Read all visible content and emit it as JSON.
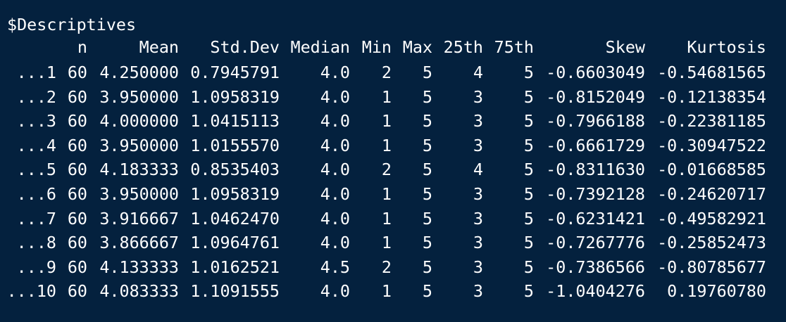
{
  "title": "$Descriptives",
  "columns": [
    "",
    "n",
    "Mean",
    "Std.Dev",
    "Median",
    "Min",
    "Max",
    "25th",
    "75th",
    "Skew",
    "Kurtosis"
  ],
  "rows": [
    [
      "...1",
      "60",
      "4.250000",
      "0.7945791",
      "4.0",
      "2",
      "5",
      "4",
      "5",
      "-0.6603049",
      "-0.54681565"
    ],
    [
      "...2",
      "60",
      "3.950000",
      "1.0958319",
      "4.0",
      "1",
      "5",
      "3",
      "5",
      "-0.8152049",
      "-0.12138354"
    ],
    [
      "...3",
      "60",
      "4.000000",
      "1.0415113",
      "4.0",
      "1",
      "5",
      "3",
      "5",
      "-0.7966188",
      "-0.22381185"
    ],
    [
      "...4",
      "60",
      "3.950000",
      "1.0155570",
      "4.0",
      "1",
      "5",
      "3",
      "5",
      "-0.6661729",
      "-0.30947522"
    ],
    [
      "...5",
      "60",
      "4.183333",
      "0.8535403",
      "4.0",
      "2",
      "5",
      "4",
      "5",
      "-0.8311630",
      "-0.01668585"
    ],
    [
      "...6",
      "60",
      "3.950000",
      "1.0958319",
      "4.0",
      "1",
      "5",
      "3",
      "5",
      "-0.7392128",
      "-0.24620717"
    ],
    [
      "...7",
      "60",
      "3.916667",
      "1.0462470",
      "4.0",
      "1",
      "5",
      "3",
      "5",
      "-0.6231421",
      "-0.49582921"
    ],
    [
      "...8",
      "60",
      "3.866667",
      "1.0964761",
      "4.0",
      "1",
      "5",
      "3",
      "5",
      "-0.7267776",
      "-0.25852473"
    ],
    [
      "...9",
      "60",
      "4.133333",
      "1.0162521",
      "4.5",
      "2",
      "5",
      "3",
      "5",
      "-0.7386566",
      "-0.80785677"
    ],
    [
      "...10",
      "60",
      "4.083333",
      "1.1091555",
      "4.0",
      "1",
      "5",
      "3",
      "5",
      "-1.0404276",
      "0.19760780"
    ]
  ],
  "colors": {
    "background": "#04213e",
    "text": "#ffffff"
  }
}
